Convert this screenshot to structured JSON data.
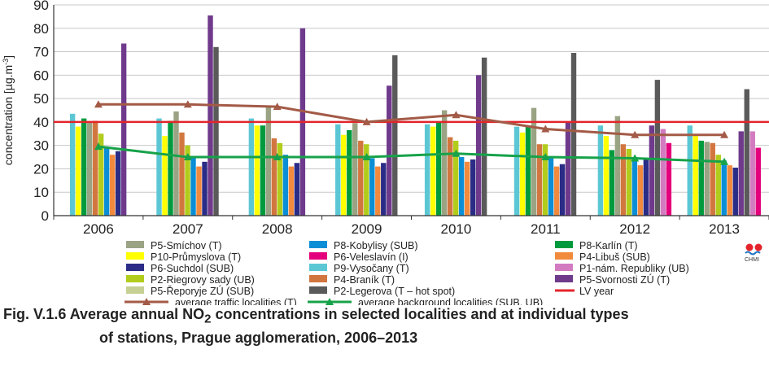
{
  "chart_data": {
    "type": "bar",
    "ylabel": "concentration [µg.m",
    "ylabel_sup": "-3",
    "ylabel_end": "]",
    "ylim": [
      0,
      90
    ],
    "yticks": [
      "0",
      "10",
      "20",
      "30",
      "40",
      "50",
      "60",
      "70",
      "80",
      "90"
    ],
    "categories": [
      "2006",
      "2007",
      "2008",
      "2009",
      "2010",
      "2011",
      "2012",
      "2013"
    ],
    "grid": "horizontal",
    "legend_position": "bottom",
    "series": [
      {
        "name": "P9-Vysočany (T)",
        "color": "#5cc7d4",
        "values": [
          43.5,
          41.5,
          41.5,
          39,
          39,
          38,
          38.5,
          38.5
        ]
      },
      {
        "name": "P10-Průmyslova (T)",
        "color": "#ffff00",
        "values": [
          38,
          34,
          38.5,
          34.5,
          38,
          35.5,
          34,
          34
        ]
      },
      {
        "name": "P8-Karlín (T)",
        "color": "#009a3e",
        "values": [
          41.5,
          40.5,
          38.5,
          36.5,
          40,
          38,
          28,
          32
        ]
      },
      {
        "name": "P5-Smíchov (T)",
        "color": "#9aa383",
        "values": [
          40,
          44.5,
          47,
          39.5,
          45,
          46,
          42.5,
          31.5
        ]
      },
      {
        "name": "P4-Braník (T)",
        "color": "#d2763f",
        "values": [
          40.5,
          35.5,
          33,
          32,
          33.5,
          30.5,
          30.5,
          31
        ]
      },
      {
        "name": "P2-Riegrovy sady (UB)",
        "color": "#b2cc1c",
        "values": [
          35,
          30,
          31,
          30.5,
          32,
          30.5,
          28.5,
          26
        ]
      },
      {
        "name": "P8-Kobylisy (SUB)",
        "color": "#0a8ed6",
        "values": [
          29,
          25.5,
          26,
          24.5,
          25,
          25,
          25,
          23.5
        ]
      },
      {
        "name": "P4-Libuš (SUB)",
        "color": "#f28a3d",
        "values": [
          26,
          21,
          21,
          21,
          23,
          21,
          21.5,
          21.5
        ]
      },
      {
        "name": "P6-Suchdol (SUB)",
        "color": "#2b2c86",
        "values": [
          27.5,
          23,
          22.5,
          22.5,
          24,
          22,
          24.5,
          20.5
        ]
      },
      {
        "name": "P5-Svornosti ZÚ (T)",
        "color": "#6f3a8c",
        "values": [
          73.5,
          85.5,
          80,
          55.5,
          60,
          40,
          38.5,
          36
        ]
      },
      {
        "name": "P2-Legerova (T – hot spot)",
        "color": "#5a5a5a",
        "values": [
          null,
          72,
          null,
          68.5,
          67.5,
          69.5,
          58,
          54
        ]
      },
      {
        "name": "P1-nám. Republiky (UB)",
        "color": "#d27bc0",
        "values": [
          null,
          null,
          null,
          null,
          null,
          null,
          37,
          36
        ]
      },
      {
        "name": "P6-Veleslavín (I)",
        "color": "#e4007c",
        "values": [
          null,
          null,
          null,
          null,
          null,
          null,
          31,
          29
        ]
      },
      {
        "name": "P5-Řeporyje ZÚ (SUB)",
        "color": "#c7d093",
        "values": [
          null,
          null,
          null,
          null,
          null,
          null,
          null,
          null
        ]
      }
    ],
    "lines": [
      {
        "name": "average traffic localities  (T)",
        "color": "#a35a46",
        "marker": "triangle",
        "values": [
          47.5,
          47.5,
          46.5,
          40,
          43,
          37,
          34.5,
          34.5
        ]
      },
      {
        "name": "average background localities  (SUB, UB)",
        "color": "#17a24a",
        "marker": "triangle",
        "values": [
          29.5,
          25,
          25,
          25,
          26.5,
          25,
          24.5,
          23
        ]
      }
    ],
    "reference_line": {
      "name": "LV year",
      "value": 40,
      "color": "#e3242b"
    },
    "legend_columns": [
      [
        "P5-Smíchov (T)",
        "P10-Průmyslova (T)",
        "P6-Suchdol (SUB)",
        "P2-Riegrovy sady (UB)",
        "P5-Řeporyje ZÚ (SUB)",
        "average traffic localities  (T)"
      ],
      [
        "P8-Kobylisy (SUB)",
        "P6-Veleslavín (I)",
        "P9-Vysočany (T)",
        "P4-Braník (T)",
        "P2-Legerova (T – hot spot)",
        "average background localities  (SUB, UB)"
      ],
      [
        "P8-Karlín (T)",
        "P4-Libuš (SUB)",
        "P1-nám. Republiky (UB)",
        "P5-Svornosti ZÚ (T)",
        "LV year"
      ]
    ]
  },
  "caption": {
    "prefix": "Fig. V.1.6  Average annual NO",
    "sub": "2",
    "rest": " concentrations in selected localities and at individual types",
    "line2": "of stations, Prague agglomeration, 2006–2013"
  },
  "logo": {
    "text": "CHMI",
    "icon": "chmi-logo-icon"
  }
}
